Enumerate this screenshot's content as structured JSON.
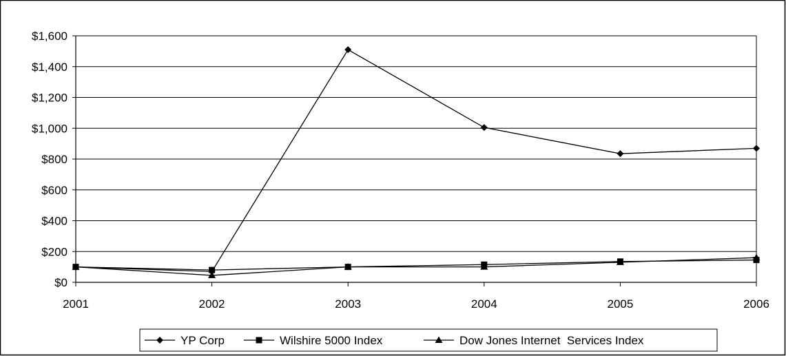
{
  "chart_data": {
    "type": "line",
    "x": [
      "2001",
      "2002",
      "2003",
      "2004",
      "2005",
      "2006"
    ],
    "y_ticks": [
      "$0",
      "$200",
      "$400",
      "$600",
      "$800",
      "$1,000",
      "$1,200",
      "$1,400",
      "$1,600"
    ],
    "ylim": [
      0,
      1600
    ],
    "grid": true,
    "legend_position": "bottom",
    "series": [
      {
        "name": "YP Corp",
        "marker": "diamond",
        "values": [
          100,
          70,
          1510,
          1005,
          835,
          870
        ]
      },
      {
        "name": "Wilshire 5000 Index",
        "marker": "square",
        "values": [
          100,
          80,
          100,
          115,
          135,
          145
        ]
      },
      {
        "name": "Dow Jones Internet  Services Index",
        "marker": "triangle",
        "values": [
          100,
          45,
          100,
          100,
          130,
          160
        ]
      }
    ],
    "colors": {
      "line": "#000000",
      "grid": "#000000",
      "background": "#ffffff"
    }
  }
}
